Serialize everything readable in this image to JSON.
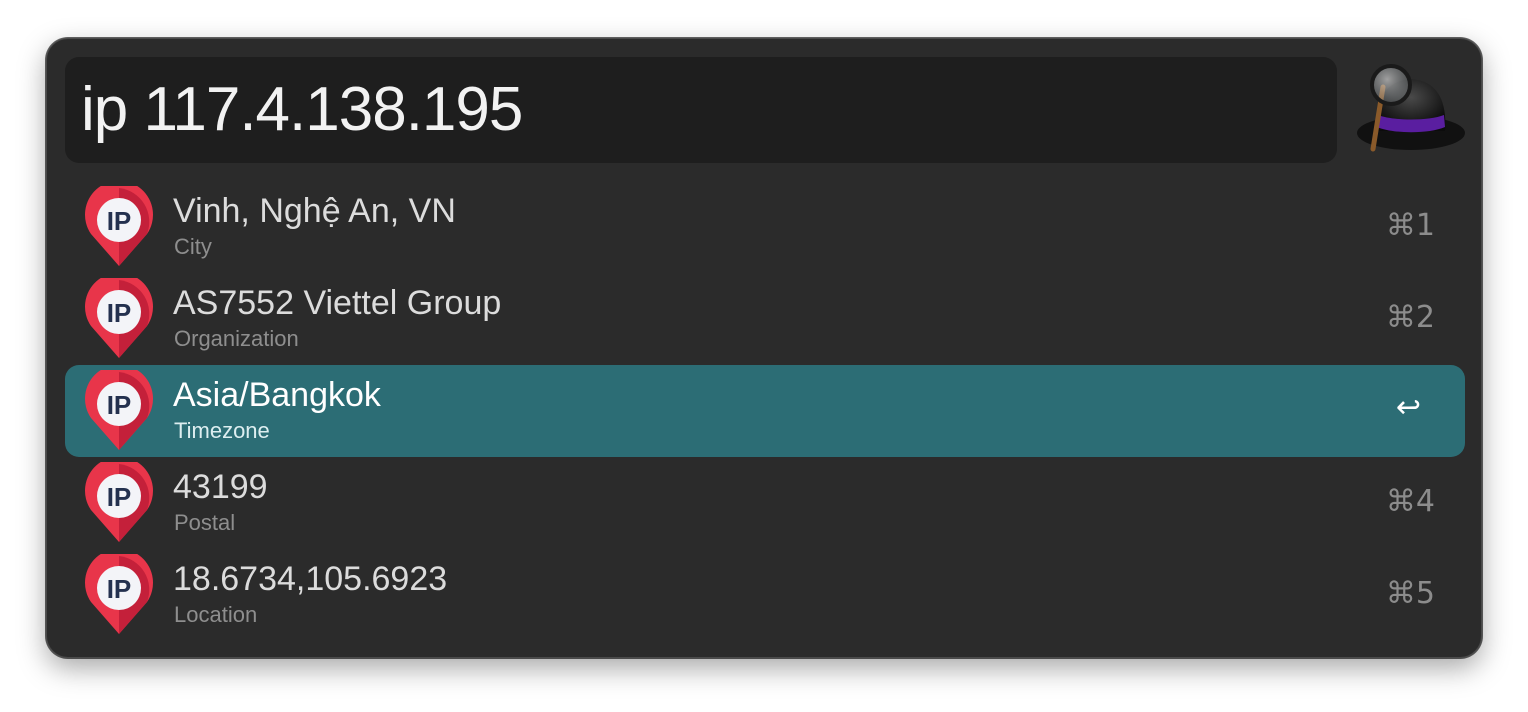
{
  "search": {
    "query": "ip 117.4.138.195"
  },
  "results": [
    {
      "title": "Vinh, Nghệ An, VN",
      "subtitle": "City",
      "shortcut": "⌘1",
      "icon": "ip-pin-icon",
      "selected": false
    },
    {
      "title": "AS7552 Viettel Group",
      "subtitle": "Organization",
      "shortcut": "⌘2",
      "icon": "ip-pin-icon",
      "selected": false
    },
    {
      "title": "Asia/Bangkok",
      "subtitle": "Timezone",
      "shortcut": "↩",
      "icon": "ip-pin-icon",
      "selected": true
    },
    {
      "title": "43199",
      "subtitle": "Postal",
      "shortcut": "⌘4",
      "icon": "ip-pin-icon",
      "selected": false
    },
    {
      "title": "18.6734,105.6923",
      "subtitle": "Location",
      "shortcut": "⌘5",
      "icon": "ip-pin-icon",
      "selected": false
    }
  ],
  "app_icon": "alfred-hat-icon",
  "colors": {
    "window_bg": "#2b2b2b",
    "search_bg": "#1e1e1e",
    "selection": "#2c6d75",
    "pin_red": "#e8354a"
  }
}
